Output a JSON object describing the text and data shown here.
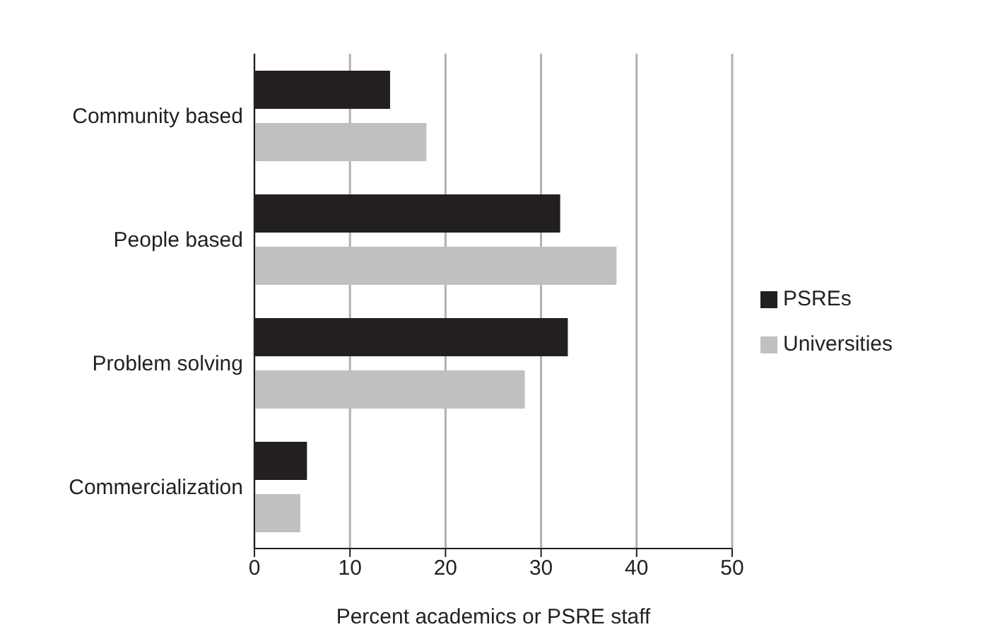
{
  "chart_data": {
    "type": "bar",
    "orientation": "horizontal",
    "categories": [
      "Community based",
      "People based",
      "Problem solving",
      "Commercialization"
    ],
    "series": [
      {
        "name": "PSREs",
        "color": "#231f20",
        "values": [
          14.2,
          32.0,
          32.8,
          5.5
        ]
      },
      {
        "name": "Universities",
        "color": "#bfc0c2",
        "values": [
          18.0,
          37.9,
          28.3,
          4.8
        ]
      }
    ],
    "xlabel": "Percent academics or PSRE staff",
    "xlim": [
      0,
      50
    ],
    "xticks": [
      0,
      10,
      20,
      30,
      40,
      50
    ],
    "grid": "x",
    "legend": "right"
  }
}
